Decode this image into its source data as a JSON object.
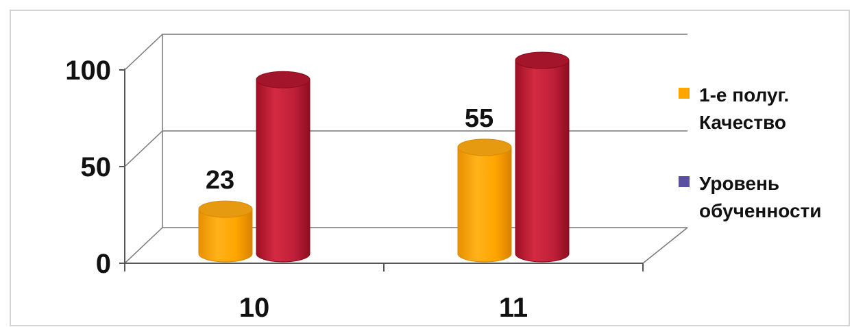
{
  "chart_data": {
    "type": "bar",
    "style": "3d-cylinder",
    "categories": [
      "10",
      "11"
    ],
    "series": [
      {
        "name": "1-е полуг. Качество",
        "values": [
          23,
          55
        ],
        "color": "#FFA500",
        "data_labels": [
          "23",
          "55"
        ]
      },
      {
        "name": "Уровень обученности",
        "values": [
          90,
          100
        ],
        "color": "#C0203A",
        "data_labels": []
      }
    ],
    "legend_swatch_colors": [
      "#FFA500",
      "#5B4FA0"
    ],
    "ylim": [
      0,
      100
    ],
    "yticks": [
      0,
      50,
      100
    ],
    "ytick_labels": [
      "0",
      "50",
      "100"
    ],
    "grid": true,
    "legend_position": "right",
    "legend": [
      {
        "lines": [
          "1-е полуг.",
          "Качество"
        ]
      },
      {
        "lines": [
          "Уровень",
          "обученности"
        ]
      }
    ]
  }
}
